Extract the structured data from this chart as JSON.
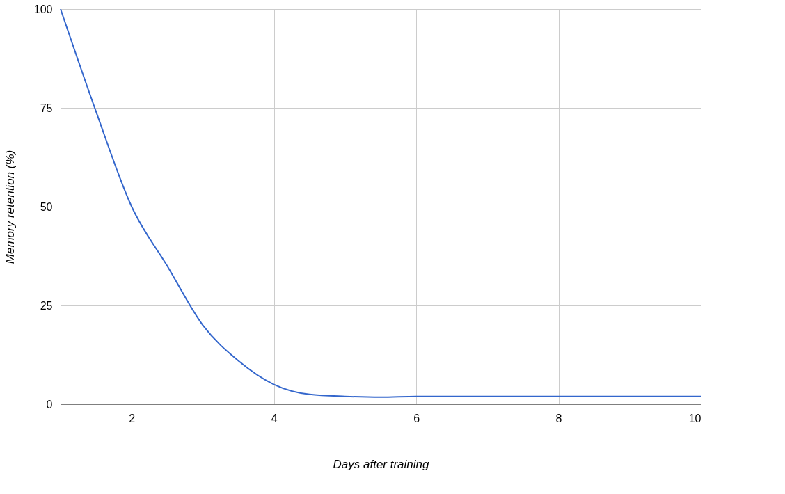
{
  "chart_data": {
    "type": "line",
    "xlabel": "Days after training",
    "ylabel": "Memory retention (%)",
    "x": [
      1,
      1.5,
      2,
      2.5,
      3,
      3.5,
      4,
      4.5,
      5,
      5.5,
      6,
      7,
      8,
      9,
      10
    ],
    "series": [
      {
        "color": "#3366cc",
        "values": [
          100,
          74,
          50,
          35,
          20,
          11,
          5,
          2.5,
          2,
          1.8,
          2,
          2,
          2,
          2,
          2
        ]
      }
    ],
    "xlim": [
      1,
      10
    ],
    "xticks": [
      2,
      4,
      6,
      8,
      10
    ],
    "ylim": [
      0,
      100
    ],
    "yticks": [
      0,
      25,
      50,
      75,
      100
    ],
    "grid": true,
    "legend": false,
    "marker": "none",
    "line_style": "solid"
  }
}
